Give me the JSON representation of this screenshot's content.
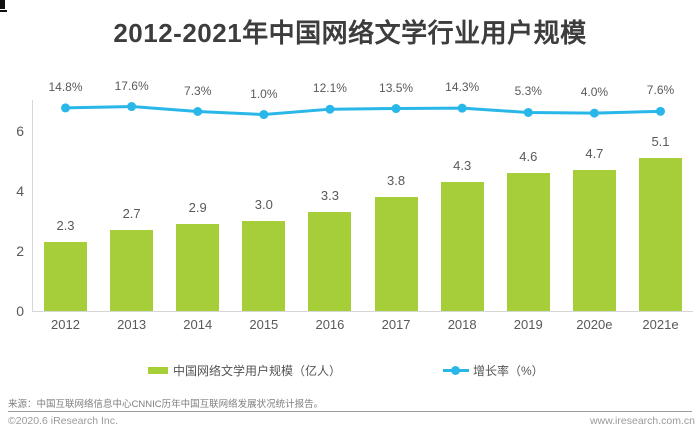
{
  "chart_data": {
    "type": "combo",
    "title": "2012-2021年中国网络文学行业用户规模",
    "categories": [
      "2012",
      "2013",
      "2014",
      "2015",
      "2016",
      "2017",
      "2018",
      "2019",
      "2020e",
      "2021e"
    ],
    "series": [
      {
        "name": "中国网络文学用户规模（亿人）",
        "type": "bar",
        "unit": "亿人",
        "color": "#a5ce39",
        "values": [
          2.3,
          2.7,
          2.9,
          3.0,
          3.3,
          3.8,
          4.3,
          4.6,
          4.7,
          5.1
        ]
      },
      {
        "name": "增长率（%）",
        "type": "line",
        "unit": "%",
        "color": "#29b6e8",
        "values": [
          14.8,
          17.6,
          7.3,
          1.0,
          12.1,
          13.5,
          14.3,
          5.3,
          4.0,
          7.6
        ]
      }
    ],
    "y_axis": {
      "ticks": [
        0,
        2,
        4,
        6
      ],
      "ylim": [
        0,
        7
      ]
    },
    "legend_position": "bottom",
    "grid": false
  },
  "footer": {
    "source": "来源：中国互联网络信息中心CNNIC历年中国互联网络发展状况统计报告。",
    "copyright": "©2020.6 iResearch Inc.",
    "website": "www.iresearch.com.cn"
  }
}
